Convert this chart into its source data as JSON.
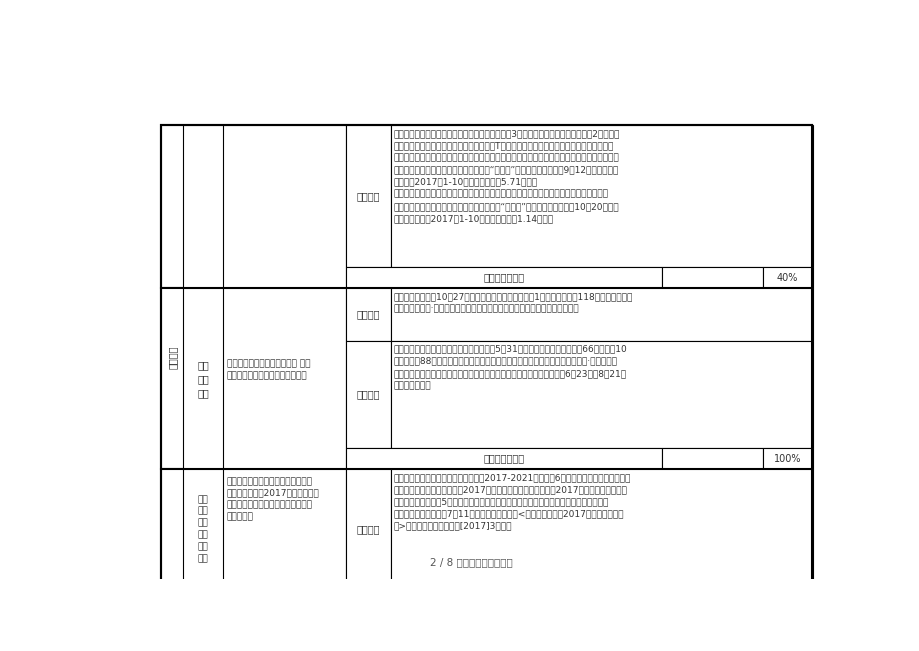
{
  "page_footer": "2 / 8 文档可自由编辑打印",
  "background_color": "#ffffff",
  "border_color": "#000000",
  "text_color": "#333333",
  "row1_col4": "累计进度",
  "row1_col6_label": "累计完成工作量",
  "row1_col6_value": "40%",
  "row2_col2": "地鐵\n物业\n开发",
  "row2_col3": "地鐵九堡客运中心综合体开业 七堡\n车辆段综合体持续开展销售工作。",
  "row2_dangye_label": "当月进度",
  "row2_leiji_label": "累计进度",
  "row2_col6_label": "累计完成工作量",
  "row2_col6_value": "100%",
  "row3_col2": "轨道\n交通\n建设\n体制\n机制\n改革",
  "row3_col4": "当月进度",
  "col1_label": "工作目标",
  "footer_color": "#555555"
}
